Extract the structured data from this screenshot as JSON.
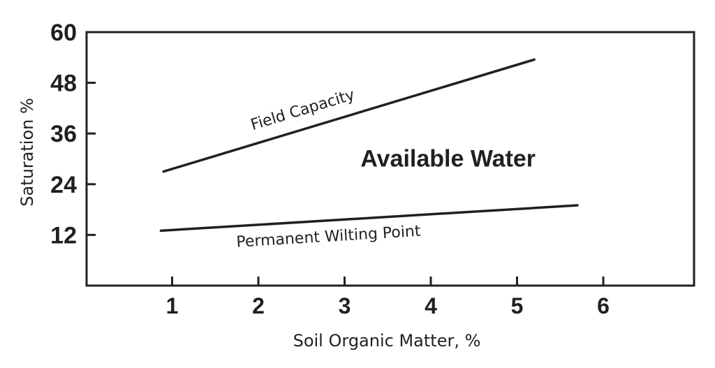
{
  "chart_data": {
    "type": "line",
    "xlabel": "Soil Organic Matter, %",
    "ylabel": "Saturation %",
    "xlim": [
      0,
      7
    ],
    "ylim": [
      0,
      60
    ],
    "x_ticks": [
      "1",
      "2",
      "3",
      "4",
      "5",
      "6"
    ],
    "y_ticks": [
      "60",
      "48",
      "36",
      "24",
      "12"
    ],
    "grid": false,
    "series": [
      {
        "name": "Field Capacity",
        "x": [
          0.9,
          5.2
        ],
        "y": [
          27,
          53.5
        ]
      },
      {
        "name": "Permanent Wilting Point",
        "x": [
          0.87,
          5.7
        ],
        "y": [
          13,
          19
        ]
      }
    ],
    "annotations": [
      {
        "text": "Available Water",
        "x": 4.2,
        "y": 30
      }
    ]
  }
}
